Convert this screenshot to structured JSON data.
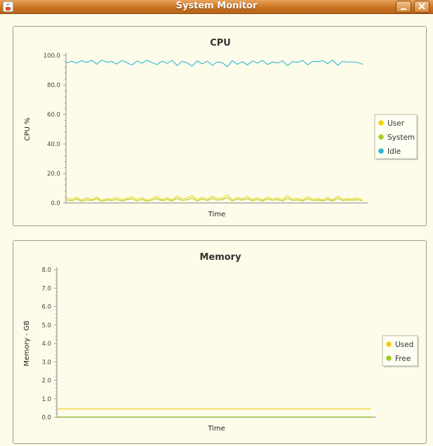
{
  "window": {
    "title": "System Monitor",
    "minimize_label": "_",
    "close_label": "✕",
    "icon": "java-cup-icon"
  },
  "colors": {
    "user": "#f2d312",
    "system": "#a8d020",
    "idle": "#2fb6d6",
    "used": "#f5cc10",
    "free": "#9ccd28",
    "titlebar": "#c8701f",
    "background": "#fdfcea"
  },
  "cpu_chart": {
    "chart_data": {
      "type": "line",
      "title": "CPU",
      "xlabel": "Time",
      "ylabel": "CPU %",
      "ylim": [
        0,
        100
      ],
      "yticks": [
        "100.0",
        "80.0",
        "60.0",
        "40.0",
        "20.0",
        "0.0"
      ],
      "legend_position": "right",
      "series": [
        {
          "name": "User",
          "values": [
            3.2,
            2.5,
            3.8,
            2.0,
            3.5,
            2.2,
            4.0,
            1.8,
            3.0,
            2.6,
            3.9,
            2.1,
            3.3,
            4.2,
            2.4,
            3.6,
            1.9,
            3.1,
            4.5,
            2.3,
            3.7,
            2.0,
            4.8,
            2.6,
            3.4,
            5.1,
            2.2,
            3.8,
            2.5,
            4.6,
            2.9,
            3.3,
            5.5,
            2.1,
            3.9,
            2.7,
            4.4,
            2.3,
            3.6,
            2.0,
            4.1,
            2.8,
            3.5,
            2.2,
            4.9,
            2.6,
            3.2,
            2.1,
            4.3,
            2.5,
            3.0,
            2.2,
            3.7,
            2.0,
            4.6,
            2.4,
            3.1,
            2.8,
            3.3,
            2.1
          ]
        },
        {
          "name": "System",
          "values": [
            2.0,
            1.5,
            2.6,
            1.2,
            2.2,
            1.6,
            2.9,
            1.1,
            2.1,
            1.7,
            2.5,
            1.3,
            2.3,
            2.8,
            1.4,
            2.4,
            1.2,
            2.0,
            3.0,
            1.5,
            2.5,
            1.3,
            3.2,
            1.6,
            2.2,
            3.4,
            1.4,
            2.6,
            1.6,
            3.1,
            1.9,
            2.2,
            3.6,
            1.3,
            2.7,
            1.8,
            2.9,
            1.5,
            2.4,
            1.3,
            2.8,
            1.8,
            2.3,
            1.4,
            3.3,
            1.7,
            2.1,
            1.3,
            2.9,
            1.6,
            2.0,
            1.4,
            2.5,
            1.3,
            3.1,
            1.6,
            2.1,
            1.8,
            2.2,
            1.4
          ]
        },
        {
          "name": "Idle",
          "values": [
            95.0,
            96.2,
            94.8,
            96.5,
            95.3,
            96.8,
            94.1,
            96.9,
            95.5,
            95.9,
            94.2,
            96.6,
            95.1,
            93.5,
            96.3,
            94.7,
            96.8,
            95.2,
            93.8,
            96.2,
            94.6,
            96.7,
            93.2,
            96.1,
            95.0,
            92.8,
            96.4,
            94.3,
            96.2,
            93.4,
            95.6,
            95.1,
            92.4,
            96.5,
            94.0,
            95.8,
            93.6,
            96.3,
            94.8,
            96.7,
            93.9,
            95.6,
            94.9,
            96.4,
            93.1,
            95.9,
            95.3,
            96.6,
            93.7,
            96.0,
            95.8,
            96.5,
            94.5,
            96.8,
            93.4,
            96.1,
            95.5,
            95.7,
            95.2,
            94.0
          ]
        }
      ]
    }
  },
  "memory_chart": {
    "chart_data": {
      "type": "line",
      "title": "Memory",
      "xlabel": "Time",
      "ylabel": "Memory - GB",
      "ylim": [
        0,
        8
      ],
      "yticks": [
        "8.0",
        "7.0",
        "6.0",
        "5.0",
        "4.0",
        "3.0",
        "2.0",
        "1.0",
        "0.0"
      ],
      "legend_position": "right",
      "series": [
        {
          "name": "Used",
          "values": [
            0.45,
            0.45,
            0.45,
            0.45,
            0.45,
            0.45,
            0.45,
            0.45,
            0.45,
            0.45
          ]
        },
        {
          "name": "Free",
          "values": [
            0.02,
            0.02,
            0.02,
            0.02,
            0.02,
            0.02,
            0.02,
            0.02,
            0.02,
            0.02
          ]
        }
      ]
    }
  }
}
